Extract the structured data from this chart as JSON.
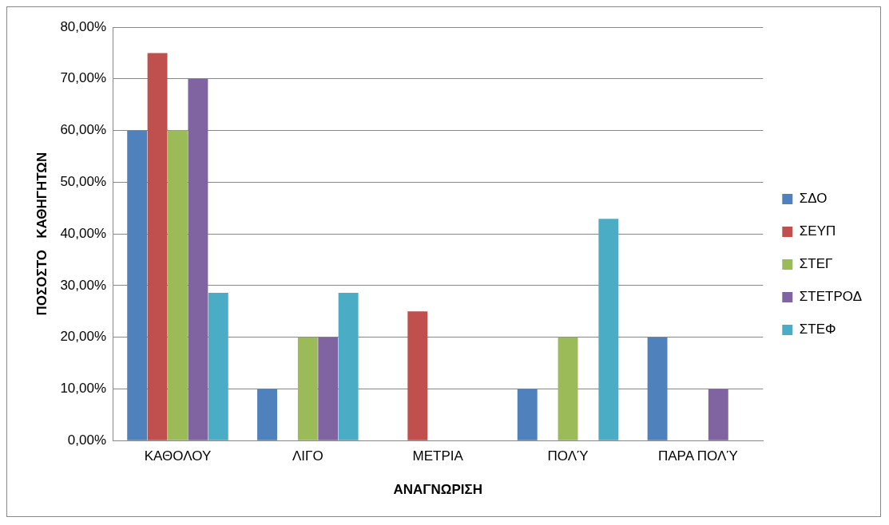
{
  "chart_data": {
    "type": "bar",
    "xlabel": "ΑΝΑΓΝΩΡΙΣΗ",
    "ylabel": "ΠΟΣΟΣΤΟ   ΚΑΘΗΓΗΤΩΝ",
    "categories": [
      "ΚΑΘΟΛΟΥ",
      "ΛΙΓΟ",
      "ΜΕΤΡΙΑ",
      "ΠΟΛΎ",
      "ΠΑΡΑ ΠΟΛΎ"
    ],
    "series": [
      {
        "name": "ΣΔΟ",
        "color": "#4f81bd",
        "values": [
          60,
          10,
          0,
          10,
          20
        ]
      },
      {
        "name": "ΣΕΥΠ",
        "color": "#c0504d",
        "values": [
          75,
          0,
          25,
          0,
          0
        ]
      },
      {
        "name": "ΣΤΕΓ",
        "color": "#9bbb59",
        "values": [
          60,
          20,
          0,
          20,
          0
        ]
      },
      {
        "name": "ΣΤΕΤΡΟΔ",
        "color": "#8064a2",
        "values": [
          70,
          20,
          0,
          0,
          10
        ]
      },
      {
        "name": "ΣΤΕΦ",
        "color": "#4bacc6",
        "values": [
          28.6,
          28.6,
          0,
          42.9,
          0
        ]
      }
    ],
    "ylim": [
      0,
      80
    ],
    "yticks": [
      {
        "value": 0,
        "label": "0,00%"
      },
      {
        "value": 10,
        "label": "10,00%"
      },
      {
        "value": 20,
        "label": "20,00%"
      },
      {
        "value": 30,
        "label": "30,00%"
      },
      {
        "value": 40,
        "label": "40,00%"
      },
      {
        "value": 50,
        "label": "50,00%"
      },
      {
        "value": 60,
        "label": "60,00%"
      },
      {
        "value": 70,
        "label": "70,00%"
      },
      {
        "value": 80,
        "label": "80,00%"
      }
    ],
    "grid": "y",
    "legend": "right"
  }
}
